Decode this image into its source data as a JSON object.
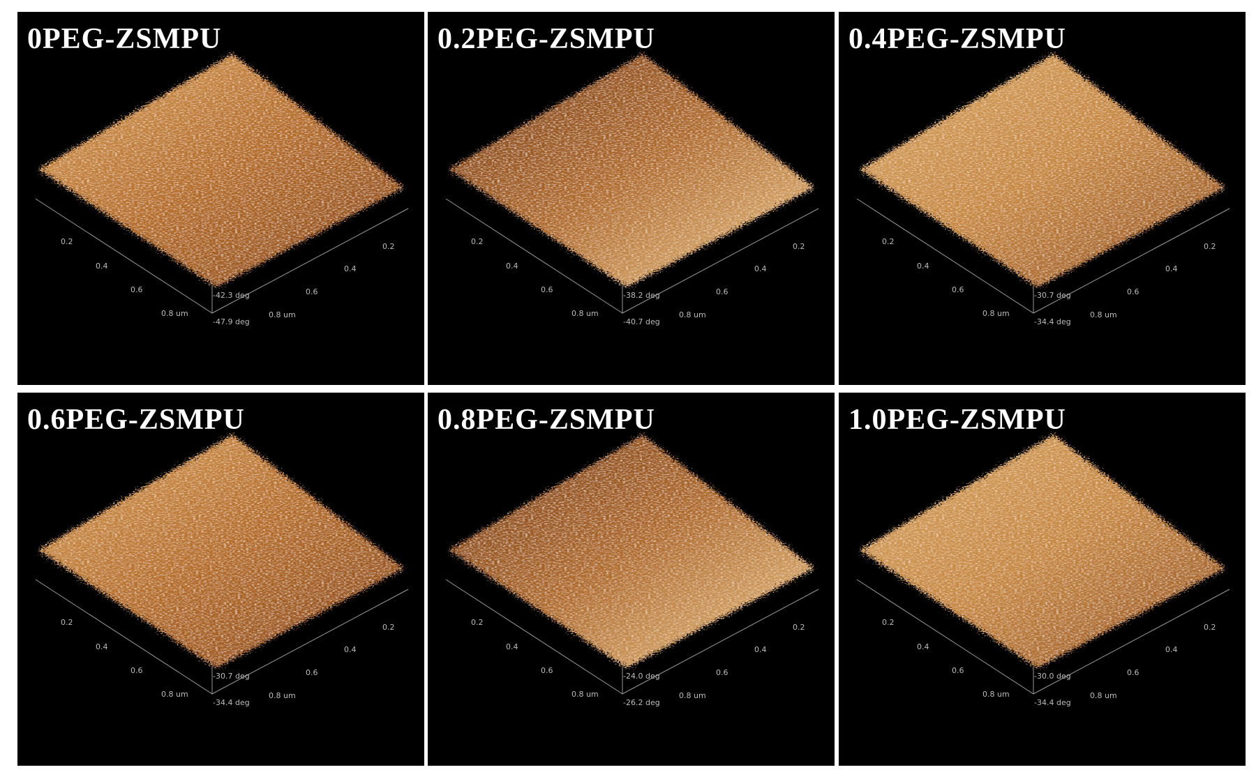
{
  "panels": [
    {
      "title": "0PEG-ZSMPU",
      "left_ticks": [
        "0.2",
        "0.4",
        "0.6",
        "0.8 um"
      ],
      "right_ticks": [
        "0.2",
        "0.4",
        "0.6",
        "0.8 um"
      ],
      "z_labels": [
        "-42.3 deg",
        "-47.9 deg"
      ]
    },
    {
      "title": "0.2PEG-ZSMPU",
      "left_ticks": [
        "0.2",
        "0.4",
        "0.6",
        "0.8 um"
      ],
      "right_ticks": [
        "0.2",
        "0.4",
        "0.6",
        "0.8 um"
      ],
      "z_labels": [
        "-38.2 deg",
        "-40.7 deg"
      ]
    },
    {
      "title": "0.4PEG-ZSMPU",
      "left_ticks": [
        "0.2",
        "0.4",
        "0.6",
        "0.8 um"
      ],
      "right_ticks": [
        "0.2",
        "0.4",
        "0.6",
        "0.8 um"
      ],
      "z_labels": [
        "-30.7 deg",
        "-34.4 deg"
      ]
    },
    {
      "title": "0.6PEG-ZSMPU",
      "left_ticks": [
        "0.2",
        "0.4",
        "0.6",
        "0.8 um"
      ],
      "right_ticks": [
        "0.2",
        "0.4",
        "0.6",
        "0.8 um"
      ],
      "z_labels": [
        "-30.7 deg",
        "-34.4 deg"
      ]
    },
    {
      "title": "0.8PEG-ZSMPU",
      "left_ticks": [
        "0.2",
        "0.4",
        "0.6",
        "0.8 um"
      ],
      "right_ticks": [
        "0.2",
        "0.4",
        "0.6",
        "0.8 um"
      ],
      "z_labels": [
        "-24.0 deg",
        "-26.2 deg"
      ]
    },
    {
      "title": "1.0PEG-ZSMPU",
      "left_ticks": [
        "0.2",
        "0.4",
        "0.6",
        "0.8 um"
      ],
      "right_ticks": [
        "0.2",
        "0.4",
        "0.6",
        "0.8 um"
      ],
      "z_labels": [
        "-30.0 deg",
        "-34.4 deg"
      ]
    }
  ]
}
